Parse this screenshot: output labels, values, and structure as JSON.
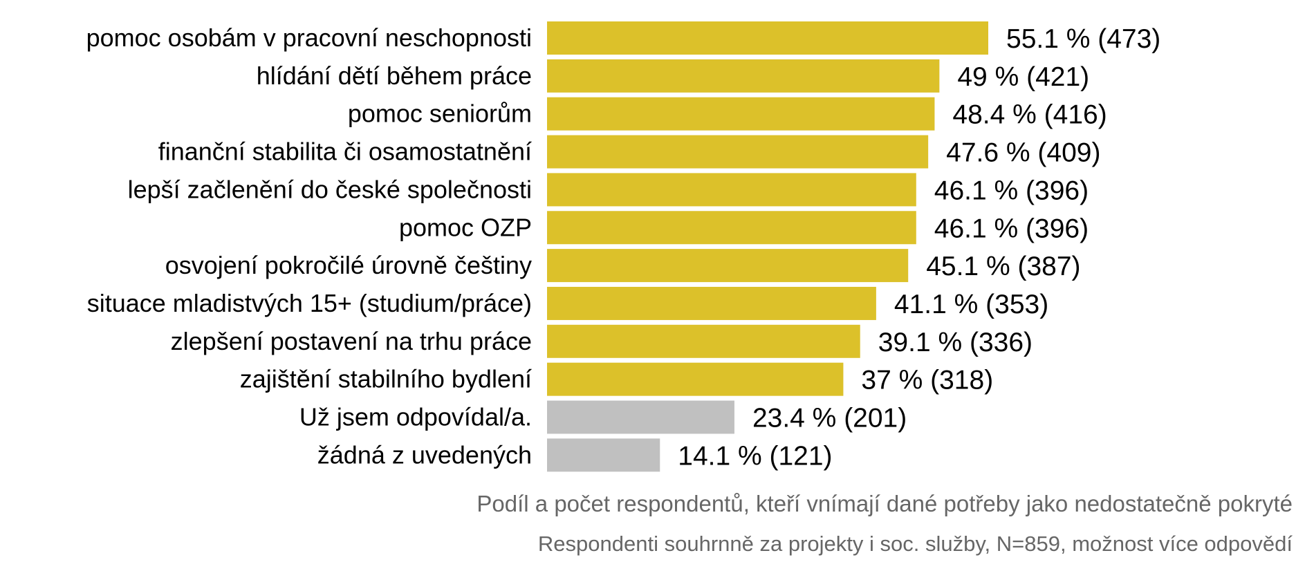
{
  "chart_data": {
    "type": "bar",
    "orientation": "horizontal",
    "categories": [
      "pomoc osobám v pracovní neschopnosti",
      "hlídání dětí během práce",
      "pomoc seniorům",
      "finanční stabilita či osamostatnění",
      "lepší začlenění do české společnosti",
      "pomoc OZP",
      "osvojení pokročilé úrovně češtiny",
      "situace mladistvých 15+ (studium/práce)",
      "zlepšení postavení na trhu práce",
      "zajištění stabilního bydlení",
      "Už jsem odpovídal/a.",
      "žádná z uvedených"
    ],
    "values": [
      55.1,
      49,
      48.4,
      47.6,
      46.1,
      46.1,
      45.1,
      41.1,
      39.1,
      37,
      23.4,
      14.1
    ],
    "counts": [
      473,
      421,
      416,
      409,
      396,
      396,
      387,
      353,
      336,
      318,
      201,
      121
    ],
    "data_labels": [
      "55.1 % (473)",
      "49 % (421)",
      "48.4 % (416)",
      "47.6 % (409)",
      "46.1 % (396)",
      "46.1 % (396)",
      "45.1 % (387)",
      "41.1 % (353)",
      "39.1 % (336)",
      "37 % (318)",
      "23.4 % (201)",
      "14.1 % (121)"
    ],
    "bar_colors": [
      "#dcc12a",
      "#dcc12a",
      "#dcc12a",
      "#dcc12a",
      "#dcc12a",
      "#dcc12a",
      "#dcc12a",
      "#dcc12a",
      "#dcc12a",
      "#dcc12a",
      "#c0c0c0",
      "#c0c0c0"
    ],
    "xlim": [
      0,
      100
    ],
    "grid": false,
    "legend": "none",
    "captions": [
      "Podíl a počet respondentů, kteří vnímají dané potřeby jako nedostatečně pokryté",
      "Respondenti souhrnně za projekty i soc. služby, N=859, možnost více odpovědí"
    ]
  }
}
